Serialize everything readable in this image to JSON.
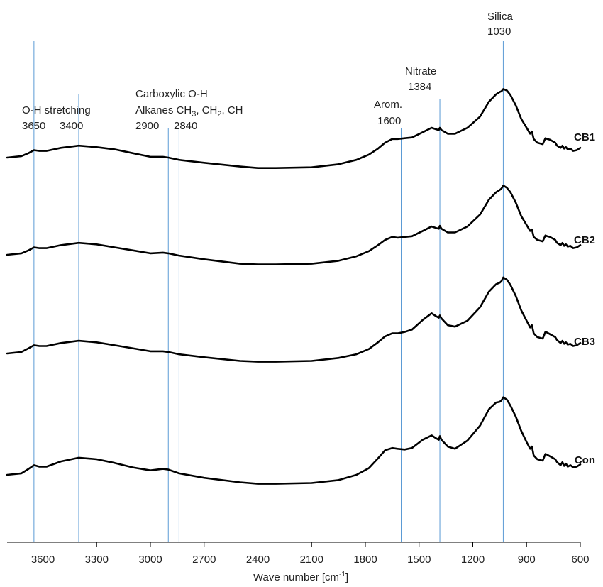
{
  "chart_data": {
    "type": "line",
    "xlabel_main": "Wave number [cm",
    "xlabel_sup": "-1",
    "xlabel_end": "]",
    "xlim": [
      3800,
      600
    ],
    "x_reversed": true,
    "xticks": [
      3600,
      3300,
      3000,
      2700,
      2400,
      2100,
      1800,
      1500,
      1200,
      900,
      600
    ],
    "y_axis_shown": false,
    "grid": false,
    "series": [
      {
        "name": "CB1",
        "points": [
          [
            3800,
            0.2
          ],
          [
            3720,
            0.22
          ],
          [
            3680,
            0.26
          ],
          [
            3650,
            0.3
          ],
          [
            3620,
            0.29
          ],
          [
            3580,
            0.29
          ],
          [
            3500,
            0.33
          ],
          [
            3400,
            0.36
          ],
          [
            3300,
            0.34
          ],
          [
            3200,
            0.31
          ],
          [
            3100,
            0.26
          ],
          [
            3000,
            0.21
          ],
          [
            2930,
            0.21
          ],
          [
            2900,
            0.2
          ],
          [
            2840,
            0.17
          ],
          [
            2700,
            0.13
          ],
          [
            2500,
            0.08
          ],
          [
            2400,
            0.06
          ],
          [
            2300,
            0.06
          ],
          [
            2100,
            0.07
          ],
          [
            1950,
            0.11
          ],
          [
            1850,
            0.17
          ],
          [
            1780,
            0.24
          ],
          [
            1730,
            0.32
          ],
          [
            1690,
            0.4
          ],
          [
            1650,
            0.45
          ],
          [
            1620,
            0.45
          ],
          [
            1580,
            0.46
          ],
          [
            1540,
            0.47
          ],
          [
            1480,
            0.54
          ],
          [
            1430,
            0.6
          ],
          [
            1405,
            0.58
          ],
          [
            1390,
            0.57
          ],
          [
            1384,
            0.6
          ],
          [
            1375,
            0.57
          ],
          [
            1340,
            0.52
          ],
          [
            1300,
            0.52
          ],
          [
            1230,
            0.6
          ],
          [
            1160,
            0.75
          ],
          [
            1110,
            0.95
          ],
          [
            1070,
            1.05
          ],
          [
            1050,
            1.08
          ],
          [
            1040,
            1.09
          ],
          [
            1030,
            1.12
          ],
          [
            1010,
            1.1
          ],
          [
            990,
            1.04
          ],
          [
            960,
            0.9
          ],
          [
            930,
            0.72
          ],
          [
            900,
            0.6
          ],
          [
            880,
            0.52
          ],
          [
            870,
            0.55
          ],
          [
            860,
            0.45
          ],
          [
            840,
            0.4
          ],
          [
            810,
            0.38
          ],
          [
            795,
            0.46
          ],
          [
            785,
            0.45
          ],
          [
            770,
            0.44
          ],
          [
            755,
            0.42
          ],
          [
            740,
            0.4
          ],
          [
            730,
            0.36
          ],
          [
            710,
            0.33
          ],
          [
            700,
            0.36
          ],
          [
            690,
            0.32
          ],
          [
            680,
            0.34
          ],
          [
            670,
            0.31
          ],
          [
            655,
            0.32
          ],
          [
            640,
            0.29
          ],
          [
            620,
            0.3
          ],
          [
            600,
            0.33
          ]
        ]
      },
      {
        "name": "CB2",
        "points": [
          [
            3800,
            0.2
          ],
          [
            3720,
            0.22
          ],
          [
            3680,
            0.26
          ],
          [
            3650,
            0.3
          ],
          [
            3620,
            0.29
          ],
          [
            3580,
            0.29
          ],
          [
            3500,
            0.33
          ],
          [
            3400,
            0.36
          ],
          [
            3300,
            0.34
          ],
          [
            3200,
            0.3
          ],
          [
            3100,
            0.26
          ],
          [
            3000,
            0.22
          ],
          [
            2930,
            0.23
          ],
          [
            2900,
            0.22
          ],
          [
            2840,
            0.19
          ],
          [
            2700,
            0.14
          ],
          [
            2500,
            0.08
          ],
          [
            2400,
            0.07
          ],
          [
            2300,
            0.07
          ],
          [
            2100,
            0.08
          ],
          [
            1950,
            0.12
          ],
          [
            1850,
            0.18
          ],
          [
            1780,
            0.25
          ],
          [
            1730,
            0.33
          ],
          [
            1690,
            0.4
          ],
          [
            1650,
            0.44
          ],
          [
            1620,
            0.43
          ],
          [
            1580,
            0.44
          ],
          [
            1540,
            0.45
          ],
          [
            1480,
            0.52
          ],
          [
            1430,
            0.58
          ],
          [
            1405,
            0.56
          ],
          [
            1390,
            0.55
          ],
          [
            1384,
            0.59
          ],
          [
            1375,
            0.55
          ],
          [
            1340,
            0.5
          ],
          [
            1300,
            0.5
          ],
          [
            1230,
            0.58
          ],
          [
            1160,
            0.74
          ],
          [
            1110,
            0.94
          ],
          [
            1070,
            1.04
          ],
          [
            1050,
            1.07
          ],
          [
            1040,
            1.09
          ],
          [
            1030,
            1.13
          ],
          [
            1010,
            1.1
          ],
          [
            990,
            1.04
          ],
          [
            960,
            0.9
          ],
          [
            930,
            0.72
          ],
          [
            900,
            0.6
          ],
          [
            880,
            0.52
          ],
          [
            870,
            0.54
          ],
          [
            860,
            0.44
          ],
          [
            840,
            0.4
          ],
          [
            810,
            0.38
          ],
          [
            795,
            0.46
          ],
          [
            785,
            0.45
          ],
          [
            770,
            0.44
          ],
          [
            755,
            0.42
          ],
          [
            740,
            0.4
          ],
          [
            730,
            0.36
          ],
          [
            710,
            0.33
          ],
          [
            700,
            0.36
          ],
          [
            690,
            0.32
          ],
          [
            680,
            0.34
          ],
          [
            670,
            0.31
          ],
          [
            655,
            0.32
          ],
          [
            640,
            0.29
          ],
          [
            620,
            0.3
          ],
          [
            600,
            0.33
          ]
        ]
      },
      {
        "name": "CB3",
        "points": [
          [
            3800,
            0.2
          ],
          [
            3720,
            0.22
          ],
          [
            3680,
            0.27
          ],
          [
            3650,
            0.31
          ],
          [
            3620,
            0.3
          ],
          [
            3580,
            0.3
          ],
          [
            3500,
            0.34
          ],
          [
            3400,
            0.37
          ],
          [
            3300,
            0.35
          ],
          [
            3200,
            0.31
          ],
          [
            3100,
            0.27
          ],
          [
            3000,
            0.23
          ],
          [
            2930,
            0.23
          ],
          [
            2900,
            0.22
          ],
          [
            2840,
            0.19
          ],
          [
            2700,
            0.15
          ],
          [
            2500,
            0.1
          ],
          [
            2400,
            0.09
          ],
          [
            2300,
            0.09
          ],
          [
            2100,
            0.1
          ],
          [
            1950,
            0.14
          ],
          [
            1850,
            0.19
          ],
          [
            1780,
            0.26
          ],
          [
            1730,
            0.35
          ],
          [
            1690,
            0.43
          ],
          [
            1650,
            0.47
          ],
          [
            1620,
            0.47
          ],
          [
            1580,
            0.49
          ],
          [
            1540,
            0.52
          ],
          [
            1480,
            0.65
          ],
          [
            1430,
            0.74
          ],
          [
            1405,
            0.7
          ],
          [
            1390,
            0.68
          ],
          [
            1384,
            0.71
          ],
          [
            1375,
            0.67
          ],
          [
            1340,
            0.58
          ],
          [
            1300,
            0.56
          ],
          [
            1230,
            0.64
          ],
          [
            1160,
            0.82
          ],
          [
            1110,
            1.03
          ],
          [
            1070,
            1.13
          ],
          [
            1050,
            1.15
          ],
          [
            1040,
            1.17
          ],
          [
            1030,
            1.22
          ],
          [
            1010,
            1.19
          ],
          [
            990,
            1.12
          ],
          [
            960,
            0.97
          ],
          [
            930,
            0.78
          ],
          [
            900,
            0.64
          ],
          [
            880,
            0.55
          ],
          [
            870,
            0.58
          ],
          [
            860,
            0.47
          ],
          [
            840,
            0.42
          ],
          [
            810,
            0.4
          ],
          [
            795,
            0.49
          ],
          [
            785,
            0.48
          ],
          [
            770,
            0.46
          ],
          [
            755,
            0.44
          ],
          [
            740,
            0.42
          ],
          [
            730,
            0.38
          ],
          [
            710,
            0.34
          ],
          [
            700,
            0.37
          ],
          [
            690,
            0.33
          ],
          [
            680,
            0.35
          ],
          [
            670,
            0.32
          ],
          [
            655,
            0.33
          ],
          [
            640,
            0.3
          ],
          [
            620,
            0.31
          ],
          [
            600,
            0.34
          ]
        ]
      },
      {
        "name": "Con",
        "points": [
          [
            3800,
            0.2
          ],
          [
            3720,
            0.22
          ],
          [
            3680,
            0.28
          ],
          [
            3650,
            0.33
          ],
          [
            3620,
            0.31
          ],
          [
            3580,
            0.31
          ],
          [
            3500,
            0.38
          ],
          [
            3400,
            0.43
          ],
          [
            3300,
            0.41
          ],
          [
            3200,
            0.36
          ],
          [
            3100,
            0.3
          ],
          [
            3000,
            0.26
          ],
          [
            2930,
            0.28
          ],
          [
            2900,
            0.27
          ],
          [
            2840,
            0.22
          ],
          [
            2700,
            0.16
          ],
          [
            2500,
            0.1
          ],
          [
            2400,
            0.08
          ],
          [
            2300,
            0.08
          ],
          [
            2100,
            0.09
          ],
          [
            1950,
            0.13
          ],
          [
            1850,
            0.2
          ],
          [
            1780,
            0.29
          ],
          [
            1730,
            0.42
          ],
          [
            1690,
            0.53
          ],
          [
            1650,
            0.56
          ],
          [
            1620,
            0.55
          ],
          [
            1580,
            0.54
          ],
          [
            1540,
            0.56
          ],
          [
            1480,
            0.67
          ],
          [
            1430,
            0.73
          ],
          [
            1405,
            0.69
          ],
          [
            1390,
            0.67
          ],
          [
            1384,
            0.72
          ],
          [
            1375,
            0.67
          ],
          [
            1340,
            0.58
          ],
          [
            1300,
            0.55
          ],
          [
            1230,
            0.66
          ],
          [
            1160,
            0.86
          ],
          [
            1110,
            1.08
          ],
          [
            1070,
            1.17
          ],
          [
            1050,
            1.18
          ],
          [
            1040,
            1.2
          ],
          [
            1030,
            1.24
          ],
          [
            1010,
            1.21
          ],
          [
            990,
            1.13
          ],
          [
            960,
            0.98
          ],
          [
            930,
            0.79
          ],
          [
            900,
            0.64
          ],
          [
            880,
            0.55
          ],
          [
            870,
            0.58
          ],
          [
            860,
            0.46
          ],
          [
            840,
            0.41
          ],
          [
            810,
            0.39
          ],
          [
            795,
            0.48
          ],
          [
            785,
            0.47
          ],
          [
            770,
            0.45
          ],
          [
            755,
            0.43
          ],
          [
            740,
            0.41
          ],
          [
            730,
            0.37
          ],
          [
            710,
            0.33
          ],
          [
            700,
            0.37
          ],
          [
            690,
            0.32
          ],
          [
            680,
            0.35
          ],
          [
            670,
            0.31
          ],
          [
            655,
            0.33
          ],
          [
            640,
            0.3
          ],
          [
            620,
            0.31
          ],
          [
            600,
            0.34
          ]
        ]
      }
    ],
    "annotations": [
      {
        "wavenumber": 3650,
        "label": "3650"
      },
      {
        "wavenumber": 3400,
        "label": "3400"
      },
      {
        "wavenumber": 2900,
        "label": "2900"
      },
      {
        "wavenumber": 2840,
        "label": "2840"
      },
      {
        "wavenumber": 1600,
        "label": "1600"
      },
      {
        "wavenumber": 1384,
        "label": "1384"
      },
      {
        "wavenumber": 1030,
        "label": "1030"
      }
    ],
    "group_labels": {
      "oh": "O-H stretching",
      "carboxylic": "Carboxylic O-H",
      "alkanes": "Alkanes CH",
      "ch3_sub": "3",
      "ch2_text": ", CH",
      "ch2_sub": "2",
      "ch_text": ", CH",
      "arom": "Arom.",
      "nitrate": "Nitrate",
      "silica": "Silica"
    },
    "colors": {
      "line": "#000000",
      "guide": "#5b9bd5",
      "axis": "#000000"
    }
  }
}
